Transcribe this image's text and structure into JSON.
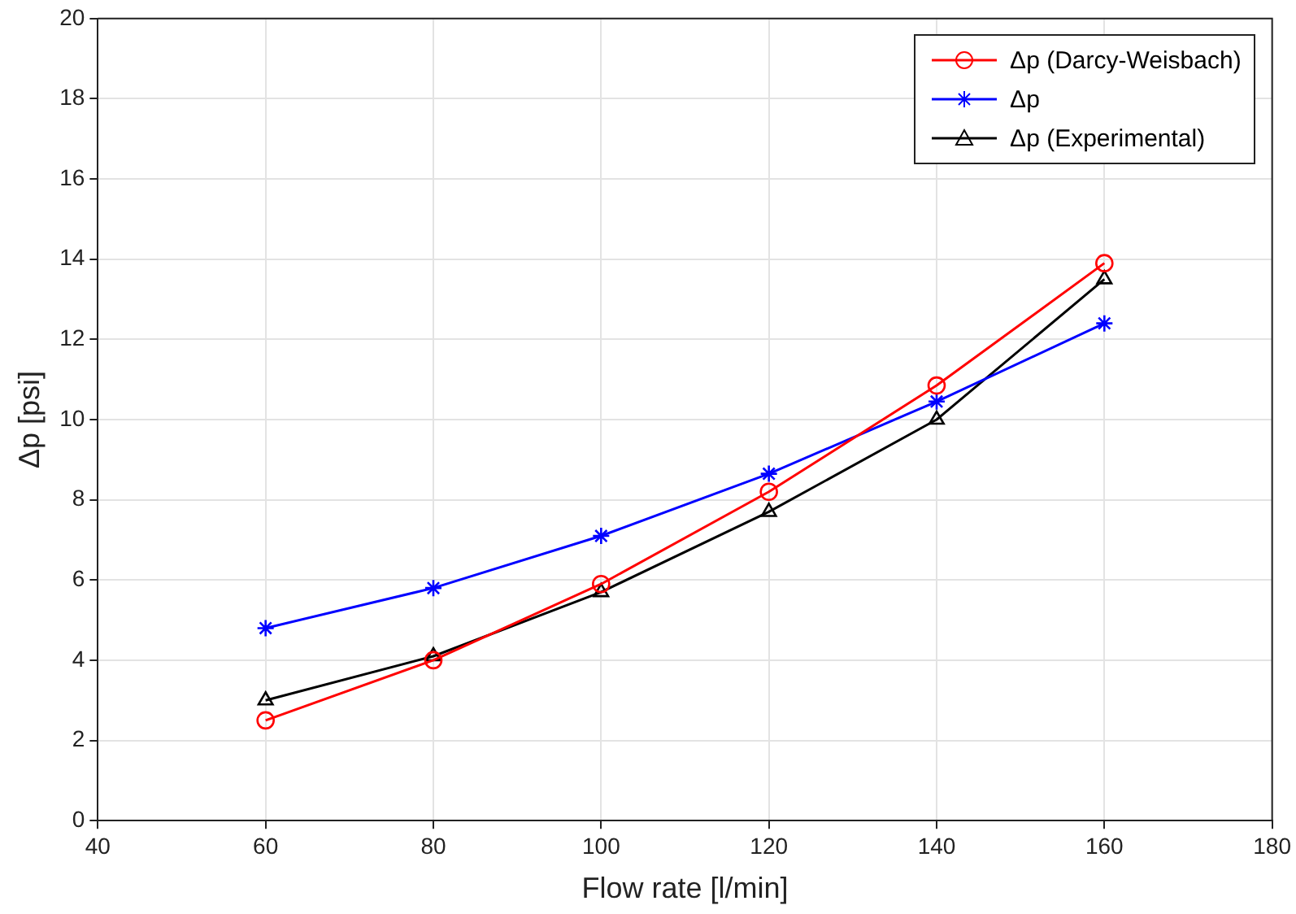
{
  "chart_data": {
    "type": "line",
    "xlabel": "Flow rate [l/min]",
    "ylabel": "Δp [psi]",
    "x": [
      60,
      80,
      100,
      120,
      140,
      160
    ],
    "series": [
      {
        "name": "Δp (Darcy-Weisbach)",
        "color": "#ff0000",
        "marker": "circle",
        "values": [
          2.5,
          4.0,
          5.9,
          8.2,
          10.85,
          13.9
        ]
      },
      {
        "name": "Δp",
        "color": "#0000ff",
        "marker": "cross",
        "values": [
          4.8,
          5.8,
          7.1,
          8.65,
          10.45,
          12.4
        ]
      },
      {
        "name": "Δp (Experimental)",
        "color": "#000000",
        "marker": "triangle",
        "values": [
          3.0,
          4.1,
          5.7,
          7.7,
          10.0,
          13.5
        ]
      }
    ],
    "xlim": [
      40,
      180
    ],
    "xticks": [
      40,
      60,
      80,
      100,
      120,
      140,
      160,
      180
    ],
    "ylim": [
      0,
      20
    ],
    "yticks": [
      0,
      2,
      4,
      6,
      8,
      10,
      12,
      14,
      16,
      18,
      20
    ],
    "grid": true,
    "legend": "top right",
    "line_style": "solid"
  }
}
